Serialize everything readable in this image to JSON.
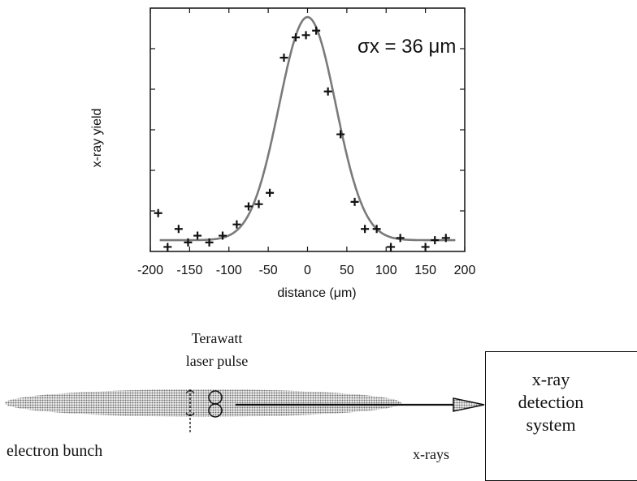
{
  "chart_data": {
    "type": "scatter",
    "xlabel": "distance (μm)",
    "ylabel": "x-ray yield",
    "annotation": "σx = 36 μm",
    "xlim": [
      -200,
      200
    ],
    "ylim": [
      0,
      1.08
    ],
    "x_ticks": [
      -200,
      -150,
      -100,
      -50,
      0,
      50,
      100,
      150,
      200
    ],
    "x_tick_labels": [
      "-200",
      "-150",
      "-100",
      "-50",
      "0",
      "50",
      "100",
      "150",
      "200"
    ],
    "grid": false,
    "series": [
      {
        "kind": "points",
        "x": [
          -190,
          -178,
          -164,
          -152,
          -140,
          -125,
          -108,
          -90,
          -75,
          -62,
          -48,
          -30,
          -15,
          -2,
          11,
          26,
          42,
          60,
          73,
          88,
          106,
          118,
          150,
          162,
          176
        ],
        "y": [
          0.17,
          0.02,
          0.1,
          0.04,
          0.07,
          0.04,
          0.07,
          0.12,
          0.2,
          0.21,
          0.26,
          0.86,
          0.95,
          0.96,
          0.98,
          0.71,
          0.52,
          0.22,
          0.1,
          0.1,
          0.02,
          0.06,
          0.02,
          0.05,
          0.06
        ]
      },
      {
        "kind": "gaussian-fit",
        "sigma": 36,
        "center": 0,
        "amplitude": 0.99,
        "baseline": 0.05
      }
    ]
  },
  "schematic": {
    "laser_label_line1": "Terawatt",
    "laser_label_line2": "laser pulse",
    "electron_label": "electron bunch",
    "xray_label": "x-rays",
    "detector_line1": "x-ray",
    "detector_line2": "detection",
    "detector_line3": "system"
  }
}
